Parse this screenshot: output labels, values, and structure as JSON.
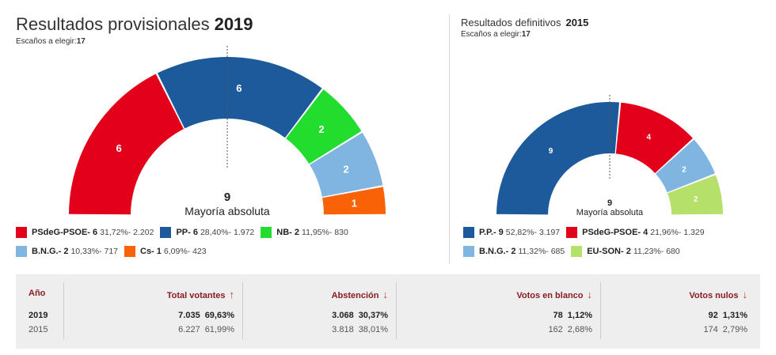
{
  "left": {
    "title": "Resultados provisionales",
    "year": "2019",
    "seats_label": "Escaños a elegir:",
    "seats_total": "17",
    "majority_number": "9",
    "majority_label": "Mayoría absoluta",
    "legend": [
      {
        "name": "PSdeG-PSOE- 6",
        "detail": "31,72%- 2.202",
        "color": "#e2001a"
      },
      {
        "name": "PP- 6",
        "detail": "28,40%- 1.972",
        "color": "#1c5a9c"
      },
      {
        "name": "NB- 2",
        "detail": "11,95%- 830",
        "color": "#22dd2e"
      },
      {
        "name": "B.N.G.- 2",
        "detail": "10,33%- 717",
        "color": "#7fb5e0"
      },
      {
        "name": "Cs- 1",
        "detail": "6,09%- 423",
        "color": "#fa6207"
      }
    ]
  },
  "right": {
    "title": "Resultados definitivos",
    "year": "2015",
    "seats_label": "Escaños a elegir:",
    "seats_total": "17",
    "majority_number": "9",
    "majority_label": "Mayoría absoluta",
    "legend": [
      {
        "name": "P.P.- 9",
        "detail": "52,82%- 3.197",
        "color": "#1c5a9c"
      },
      {
        "name": "PSdeG-PSOE- 4",
        "detail": "21,96%- 1.329",
        "color": "#e2001a"
      },
      {
        "name": "B.N.G.- 2",
        "detail": "11,32%- 685",
        "color": "#7fb5e0"
      },
      {
        "name": "EU-SON- 2",
        "detail": "11,23%- 680",
        "color": "#b5e16a"
      }
    ]
  },
  "chart_data": [
    {
      "type": "parliament",
      "title": "Resultados provisionales 2019",
      "total_seats": 17,
      "majority": 9,
      "categories": [
        "PSdeG-PSOE",
        "PP",
        "NB",
        "B.N.G.",
        "Cs"
      ],
      "values": [
        6,
        6,
        2,
        2,
        1
      ],
      "vote_share_pct": [
        31.72,
        28.4,
        11.95,
        10.33,
        6.09
      ],
      "votes": [
        2202,
        1972,
        830,
        717,
        423
      ],
      "colors": [
        "#e2001a",
        "#1c5a9c",
        "#22dd2e",
        "#7fb5e0",
        "#fa6207"
      ]
    },
    {
      "type": "parliament",
      "title": "Resultados definitivos 2015",
      "total_seats": 17,
      "majority": 9,
      "categories": [
        "P.P.",
        "PSdeG-PSOE",
        "B.N.G.",
        "EU-SON"
      ],
      "values": [
        9,
        4,
        2,
        2
      ],
      "vote_share_pct": [
        52.82,
        21.96,
        11.32,
        11.23
      ],
      "votes": [
        3197,
        1329,
        685,
        680
      ],
      "colors": [
        "#1c5a9c",
        "#e2001a",
        "#7fb5e0",
        "#b5e16a"
      ]
    },
    {
      "type": "table",
      "columns": [
        {
          "label": "Año",
          "arrow": ""
        },
        {
          "label": "Total votantes",
          "arrow": "↑"
        },
        {
          "label": "Abstención",
          "arrow": "↓"
        },
        {
          "label": "Votos en blanco",
          "arrow": "↓"
        },
        {
          "label": "Votos nulos",
          "arrow": "↓"
        }
      ],
      "rows": [
        {
          "year": "2019",
          "total": "7.035",
          "total_pct": "69,63%",
          "abst": "3.068",
          "abst_pct": "30,37%",
          "blank": "78",
          "blank_pct": "1,12%",
          "null": "92",
          "null_pct": "1,31%"
        },
        {
          "year": "2015",
          "total": "6.227",
          "total_pct": "61,99%",
          "abst": "3.818",
          "abst_pct": "38,01%",
          "blank": "162",
          "blank_pct": "2,68%",
          "null": "174",
          "null_pct": "2,79%"
        }
      ]
    }
  ]
}
